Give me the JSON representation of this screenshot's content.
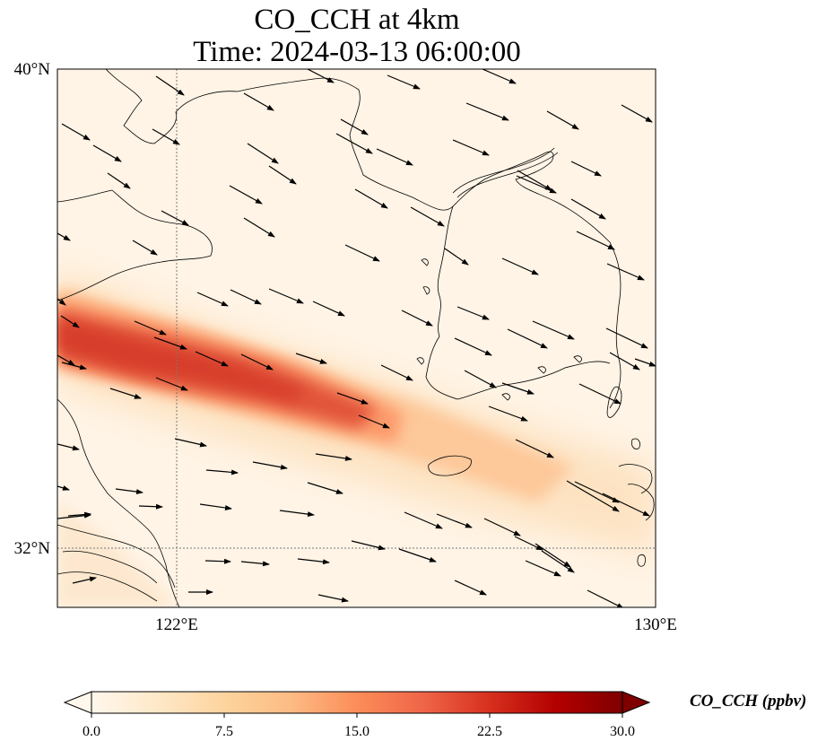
{
  "map": {
    "title_line1": "CO_CCH at 4km",
    "title_line2": "Time: 2024-03-13 06:00:00",
    "lat_range": [
      31,
      40
    ],
    "lon_range": [
      120,
      130
    ],
    "lat_ticks": [
      {
        "value": 40,
        "label": "40°N"
      },
      {
        "value": 32,
        "label": "32°N"
      }
    ],
    "lon_ticks": [
      {
        "value": 122,
        "label": "122°E"
      },
      {
        "value": 130,
        "label": "130°E"
      }
    ],
    "gridlines": {
      "lats": [
        32
      ],
      "lons": [
        122
      ]
    },
    "colormap": "OrRd",
    "plume": {
      "max_ppbv": 20,
      "axis": "west-northwest to east-southeast across the Yellow Sea"
    },
    "wind": "northwesterly, vectors pointing east-southeast"
  },
  "colorbar": {
    "label": "CO_CCH (ppbv)",
    "min": 0.0,
    "max": 30.0,
    "ticks": [
      {
        "value": 0.0,
        "label": "0.0"
      },
      {
        "value": 7.5,
        "label": "7.5"
      },
      {
        "value": 15.0,
        "label": "15.0"
      },
      {
        "value": 22.5,
        "label": "22.5"
      },
      {
        "value": 30.0,
        "label": "30.0"
      }
    ],
    "colors": [
      "#fff7ec",
      "#fee8c8",
      "#fdd49e",
      "#fdbb84",
      "#fc8d59",
      "#ef6548",
      "#d7301f",
      "#b30000",
      "#7f0000"
    ]
  }
}
